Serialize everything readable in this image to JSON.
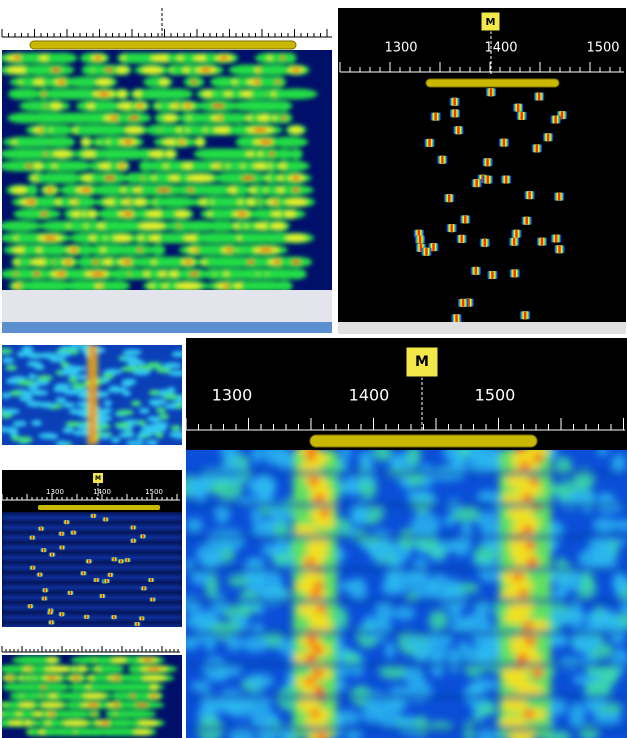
{
  "panels": [
    {
      "marker": "M",
      "scale_labels": [
        "1300",
        "1400",
        "1500"
      ]
    },
    {
      "marker": "M",
      "scale_labels": [
        "1300",
        "1400",
        "1500"
      ]
    },
    {
      "marker": "M",
      "scale_labels": [
        "1300",
        "1400",
        "1500"
      ]
    }
  ]
}
